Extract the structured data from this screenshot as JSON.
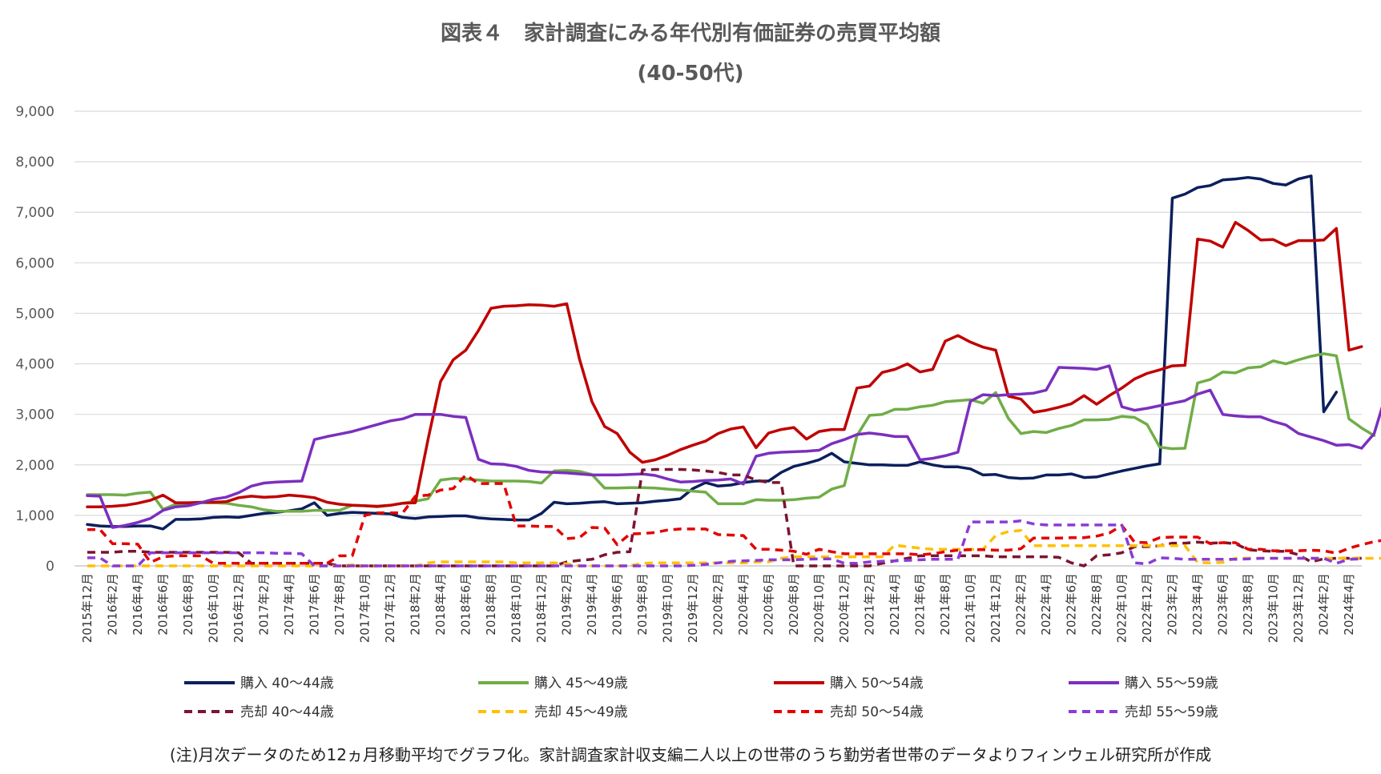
{
  "chart_data": {
    "type": "line",
    "title": "図表４　家計調査にみる年代別有価証券の売買平均額",
    "subtitle": "(40-50代)",
    "note": "(注)月次データのため12ヵ月移動平均でグラフ化。家計調査家計収支編二人以上の世帯のうち勤労者世帯のデータよりフィンウェル研究所が作成",
    "ylim": [
      0,
      9000
    ],
    "yticks": [
      0,
      1000,
      2000,
      3000,
      4000,
      5000,
      6000,
      7000,
      8000,
      9000
    ],
    "ytick_labels": [
      "0",
      "1,000",
      "2,000",
      "3,000",
      "4,000",
      "5,000",
      "6,000",
      "7,000",
      "8,000",
      "9,000"
    ],
    "grid": true,
    "legend_position": "bottom",
    "x_start": "2015年12月",
    "x_tick_labels": [
      "2015年12月",
      "2016年2月",
      "2016年4月",
      "2016年6月",
      "2016年8月",
      "2016年10月",
      "2016年12月",
      "2017年2月",
      "2017年4月",
      "2017年6月",
      "2017年8月",
      "2017年10月",
      "2017年12月",
      "2018年2月",
      "2018年4月",
      "2018年6月",
      "2018年8月",
      "2018年10月",
      "2018年12月",
      "2019年2月",
      "2019年4月",
      "2019年6月",
      "2019年8月",
      "2019年10月",
      "2019年12月",
      "2020年2月",
      "2020年4月",
      "2020年6月",
      "2020年8月",
      "2020年10月",
      "2020年12月",
      "2021年2月",
      "2021年4月",
      "2021年6月",
      "2021年8月",
      "2021年10月",
      "2021年12月",
      "2022年2月",
      "2022年4月",
      "2022年6月",
      "2022年8月",
      "2022年10月",
      "2022年12月",
      "2023年2月",
      "2023年4月",
      "2023年6月",
      "2023年8月",
      "2023年10月",
      "2023年12月",
      "2024年2月",
      "2024年4月"
    ],
    "series": [
      {
        "name": "購入 40～44歳",
        "color": "#0b1f5c",
        "dash": false,
        "values": [
          820,
          790,
          780,
          780,
          790,
          790,
          730,
          920,
          920,
          930,
          960,
          970,
          960,
          1000,
          1040,
          1060,
          1090,
          1130,
          1250,
          1000,
          1040,
          1060,
          1050,
          1040,
          1030,
          960,
          940,
          970,
          980,
          990,
          990,
          950,
          930,
          920,
          910,
          910,
          1040,
          1260,
          1230,
          1240,
          1260,
          1270,
          1230,
          1240,
          1250,
          1280,
          1300,
          1330,
          1530,
          1650,
          1580,
          1600,
          1650,
          1680,
          1680,
          1850,
          1970,
          2030,
          2100,
          2230,
          2060,
          2030,
          2000,
          2000,
          1990,
          1990,
          2060,
          2000,
          1960,
          1960,
          1920,
          1800,
          1810,
          1750,
          1730,
          1740,
          1800,
          1800,
          1820,
          1750,
          1760,
          1820,
          1880,
          1930,
          1980,
          2020,
          7280,
          7360,
          7490,
          7530,
          7640,
          7660,
          7690,
          7660,
          7570,
          7540,
          7660,
          7720,
          3050,
          3440
        ]
      },
      {
        "name": "購入 45～49歳",
        "color": "#70ad47",
        "dash": false,
        "values": [
          1410,
          1410,
          1410,
          1400,
          1440,
          1460,
          1120,
          1220,
          1240,
          1250,
          1250,
          1240,
          1200,
          1170,
          1110,
          1080,
          1080,
          1080,
          1100,
          1100,
          1100,
          1200,
          1190,
          1170,
          1200,
          1240,
          1280,
          1330,
          1700,
          1730,
          1720,
          1700,
          1680,
          1680,
          1680,
          1670,
          1640,
          1880,
          1890,
          1870,
          1810,
          1540,
          1540,
          1550,
          1550,
          1540,
          1520,
          1500,
          1480,
          1460,
          1230,
          1230,
          1230,
          1310,
          1300,
          1300,
          1310,
          1340,
          1360,
          1520,
          1590,
          2580,
          2980,
          3000,
          3100,
          3100,
          3150,
          3180,
          3250,
          3270,
          3290,
          3220,
          3430,
          2920,
          2620,
          2660,
          2640,
          2720,
          2780,
          2890,
          2890,
          2900,
          2960,
          2940,
          2800,
          2350,
          2320,
          2330,
          3620,
          3690,
          3840,
          3820,
          3920,
          3940,
          4060,
          4000,
          4080,
          4150,
          4200,
          4160,
          2910,
          2730,
          2580
        ]
      },
      {
        "name": "購入 50～54歳",
        "color": "#c00000",
        "dash": false,
        "values": [
          1170,
          1170,
          1180,
          1200,
          1240,
          1300,
          1400,
          1250,
          1250,
          1260,
          1260,
          1270,
          1350,
          1380,
          1360,
          1370,
          1400,
          1380,
          1350,
          1260,
          1220,
          1200,
          1190,
          1180,
          1200,
          1240,
          1250,
          2500,
          3650,
          4080,
          4270,
          4660,
          5100,
          5140,
          5150,
          5170,
          5160,
          5140,
          5190,
          4100,
          3250,
          2760,
          2620,
          2250,
          2050,
          2100,
          2190,
          2300,
          2390,
          2470,
          2620,
          2710,
          2750,
          2340,
          2630,
          2700,
          2740,
          2510,
          2660,
          2700,
          2700,
          3520,
          3560,
          3830,
          3890,
          4000,
          3840,
          3890,
          4450,
          4560,
          4430,
          4330,
          4270,
          3360,
          3300,
          3040,
          3080,
          3140,
          3210,
          3370,
          3200,
          3370,
          3520,
          3700,
          3810,
          3880,
          3960,
          3970,
          6470,
          6430,
          6310,
          6800,
          6640,
          6450,
          6460,
          6340,
          6440,
          6440,
          6450,
          6680,
          4270,
          4340
        ]
      },
      {
        "name": "購入 55～59歳",
        "color": "#7b2fbe",
        "dash": false,
        "values": [
          1390,
          1380,
          760,
          800,
          860,
          940,
          1100,
          1170,
          1190,
          1250,
          1320,
          1360,
          1450,
          1580,
          1640,
          1660,
          1670,
          1680,
          2500,
          2560,
          2610,
          2660,
          2730,
          2800,
          2870,
          2910,
          3000,
          3000,
          3000,
          2960,
          2940,
          2110,
          2020,
          2010,
          1970,
          1890,
          1860,
          1850,
          1840,
          1820,
          1800,
          1800,
          1800,
          1810,
          1820,
          1790,
          1720,
          1660,
          1670,
          1690,
          1700,
          1720,
          1620,
          2170,
          2230,
          2250,
          2260,
          2270,
          2290,
          2420,
          2500,
          2600,
          2630,
          2600,
          2560,
          2560,
          2100,
          2130,
          2180,
          2250,
          3260,
          3390,
          3370,
          3390,
          3400,
          3420,
          3480,
          3930,
          3920,
          3910,
          3890,
          3960,
          3150,
          3080,
          3120,
          3170,
          3220,
          3270,
          3400,
          3480,
          3000,
          2970,
          2950,
          2950,
          2860,
          2790,
          2620,
          2550,
          2480,
          2390,
          2400,
          2330,
          2620,
          3450
        ]
      },
      {
        "name": "売却 40～44歳",
        "color": "#7b1530",
        "dash": true,
        "values": [
          270,
          270,
          270,
          290,
          290,
          270,
          270,
          270,
          270,
          270,
          270,
          270,
          260,
          50,
          50,
          50,
          50,
          50,
          50,
          50,
          0,
          0,
          0,
          0,
          0,
          0,
          0,
          0,
          0,
          0,
          0,
          0,
          0,
          0,
          0,
          0,
          0,
          0,
          80,
          110,
          130,
          220,
          270,
          280,
          1900,
          1910,
          1910,
          1910,
          1900,
          1880,
          1850,
          1800,
          1800,
          1700,
          1650,
          1650,
          0,
          0,
          0,
          0,
          0,
          0,
          0,
          50,
          100,
          150,
          200,
          200,
          200,
          200,
          200,
          200,
          180,
          180,
          180,
          180,
          180,
          170,
          60,
          0,
          200,
          220,
          260,
          380,
          380,
          400,
          450,
          450,
          470,
          450,
          460,
          440,
          320,
          300,
          290,
          290,
          220,
          80,
          140,
          150,
          150,
          150
        ]
      },
      {
        "name": "売却 45～49歳",
        "color": "#ffc000",
        "dash": true,
        "values": [
          0,
          0,
          0,
          0,
          0,
          0,
          0,
          0,
          0,
          0,
          0,
          0,
          0,
          0,
          0,
          0,
          0,
          0,
          0,
          0,
          0,
          20,
          0,
          0,
          0,
          0,
          0,
          60,
          80,
          80,
          80,
          80,
          80,
          80,
          60,
          60,
          60,
          60,
          40,
          0,
          0,
          0,
          0,
          0,
          50,
          60,
          60,
          60,
          60,
          60,
          60,
          60,
          60,
          80,
          80,
          150,
          180,
          180,
          180,
          180,
          180,
          180,
          180,
          180,
          410,
          380,
          350,
          330,
          330,
          330,
          330,
          330,
          600,
          680,
          700,
          400,
          400,
          400,
          400,
          400,
          400,
          400,
          400,
          400,
          400,
          400,
          400,
          400,
          70,
          60,
          70,
          150,
          150,
          150,
          150,
          150,
          150,
          150,
          150,
          150,
          150,
          150,
          150,
          150
        ]
      },
      {
        "name": "売却 50～54歳",
        "color": "#e30000",
        "dash": true,
        "values": [
          720,
          720,
          440,
          440,
          430,
          70,
          180,
          200,
          200,
          200,
          50,
          50,
          50,
          50,
          50,
          50,
          50,
          50,
          50,
          50,
          200,
          200,
          1000,
          1050,
          1050,
          1050,
          1380,
          1400,
          1500,
          1530,
          1800,
          1630,
          1630,
          1630,
          790,
          790,
          780,
          780,
          540,
          560,
          760,
          750,
          420,
          630,
          640,
          660,
          710,
          730,
          730,
          730,
          620,
          610,
          600,
          330,
          330,
          310,
          290,
          230,
          330,
          280,
          240,
          240,
          240,
          240,
          240,
          240,
          220,
          240,
          280,
          310,
          320,
          320,
          310,
          310,
          340,
          550,
          550,
          550,
          560,
          560,
          590,
          650,
          800,
          470,
          460,
          560,
          570,
          570,
          570,
          440,
          460,
          460,
          330,
          330,
          300,
          300,
          300,
          310,
          300,
          250,
          350,
          420,
          480,
          520,
          520,
          500
        ]
      },
      {
        "name": "売却 55～59歳",
        "color": "#8b3bd6",
        "dash": true,
        "values": [
          160,
          160,
          0,
          0,
          0,
          260,
          260,
          260,
          260,
          260,
          260,
          260,
          260,
          260,
          260,
          250,
          250,
          240,
          0,
          0,
          0,
          0,
          0,
          0,
          0,
          0,
          0,
          0,
          0,
          0,
          0,
          0,
          0,
          0,
          0,
          0,
          0,
          0,
          0,
          0,
          0,
          0,
          0,
          0,
          0,
          0,
          0,
          0,
          10,
          30,
          60,
          90,
          100,
          110,
          120,
          120,
          120,
          130,
          140,
          140,
          50,
          50,
          80,
          90,
          100,
          110,
          120,
          130,
          130,
          130,
          870,
          870,
          870,
          870,
          890,
          830,
          810,
          810,
          810,
          810,
          810,
          810,
          810,
          60,
          40,
          160,
          150,
          130,
          130,
          130,
          130,
          130,
          140,
          150,
          150,
          150,
          150,
          150,
          150,
          50,
          130,
          140
        ]
      }
    ]
  }
}
